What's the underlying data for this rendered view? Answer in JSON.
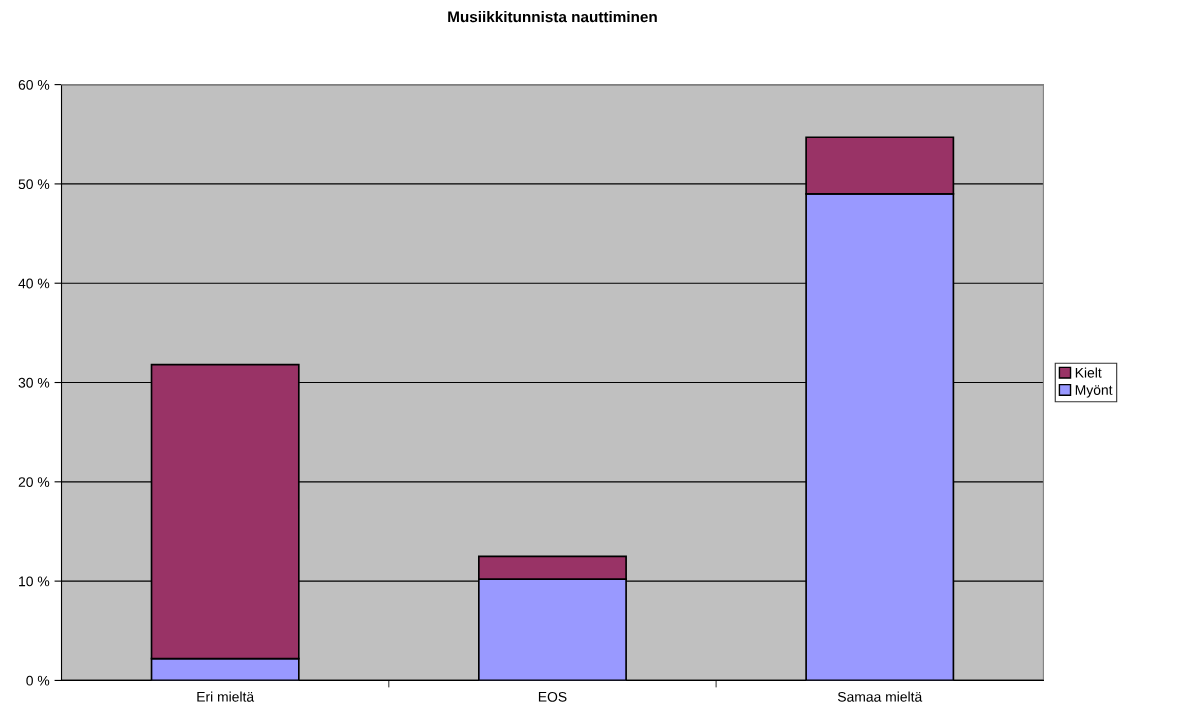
{
  "chart_data": {
    "type": "bar",
    "title": "Musiikkitunnista nauttiminen",
    "stacked": true,
    "categories": [
      "Eri mieltä",
      "EOS",
      "Samaa mieltä"
    ],
    "series": [
      {
        "name": "Myönt",
        "color": "#9999ff",
        "values": [
          2.2,
          10.2,
          49.0
        ]
      },
      {
        "name": "Kielt",
        "color": "#993366",
        "values": [
          29.6,
          2.3,
          5.7
        ]
      }
    ],
    "ylim": [
      0,
      60
    ],
    "yticks": [
      {
        "value": 0,
        "label": "0 %"
      },
      {
        "value": 10,
        "label": "10 %"
      },
      {
        "value": 20,
        "label": "20 %"
      },
      {
        "value": 30,
        "label": "30 %"
      },
      {
        "value": 40,
        "label": "40 %"
      },
      {
        "value": 50,
        "label": "50 %"
      },
      {
        "value": 60,
        "label": "60 %"
      }
    ],
    "grid": "y",
    "legend": "right"
  }
}
